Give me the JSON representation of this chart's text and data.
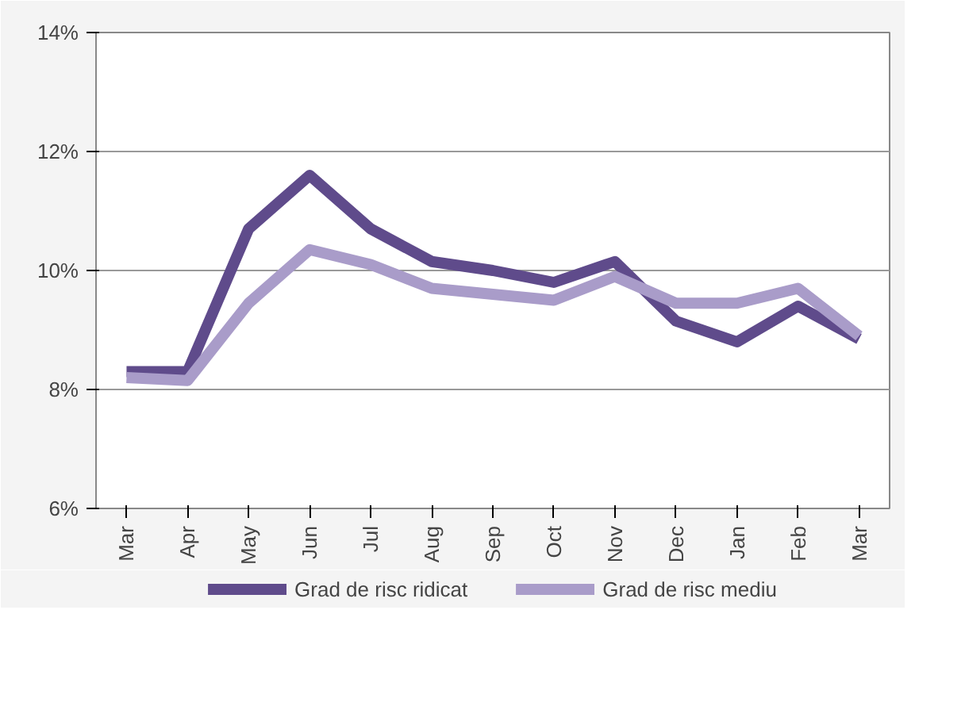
{
  "chart_data": {
    "type": "line",
    "categories": [
      "Mar",
      "Apr",
      "May",
      "Jun",
      "Jul",
      "Aug",
      "Sep",
      "Oct",
      "Nov",
      "Dec",
      "Jan",
      "Feb",
      "Mar"
    ],
    "series": [
      {
        "name": "Grad de risc ridicat",
        "color": "#5f4b8b",
        "values": [
          8.3,
          8.3,
          10.7,
          11.6,
          10.7,
          10.15,
          10.0,
          9.8,
          10.15,
          9.15,
          8.8,
          9.4,
          8.85
        ]
      },
      {
        "name": "Grad de risc mediu",
        "color": "#a99cc9",
        "values": [
          8.2,
          8.15,
          9.45,
          10.35,
          10.1,
          9.7,
          9.6,
          9.5,
          9.9,
          9.45,
          9.45,
          9.7,
          8.9
        ]
      }
    ],
    "ylim": [
      6,
      14
    ],
    "yticks": [
      {
        "value": 6,
        "label": "6%"
      },
      {
        "value": 8,
        "label": "8%"
      },
      {
        "value": 10,
        "label": "10%"
      },
      {
        "value": 12,
        "label": "12%"
      },
      {
        "value": 14,
        "label": "14%"
      }
    ],
    "grid": "y",
    "legend": "bottom",
    "marker": "none",
    "line_style": "solid"
  }
}
